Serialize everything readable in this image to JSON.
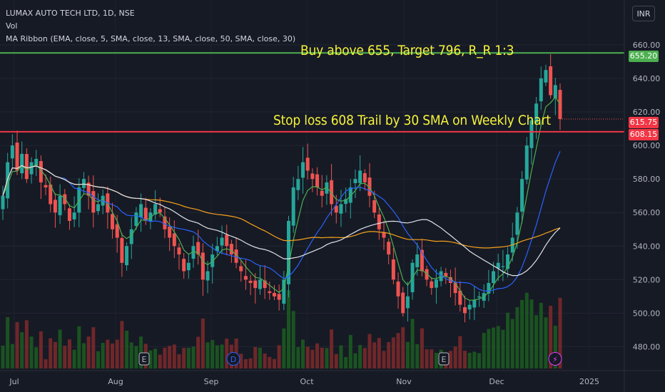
{
  "header": {
    "symbol": "LUMAX AUTO TECH LTD, 1D, NSE",
    "vol_label": "Vol",
    "ma_label": "MA Ribbon (EMA, close, 5, SMA, close, 13, SMA, close, 50, SMA, close, 30)",
    "currency_button": "INR"
  },
  "annotations": {
    "buy": "Buy above 655, Target 796, R_R 1:3",
    "stop": "Stop loss 608 Trail by 30 SMA on Weekly Chart"
  },
  "price_tags": {
    "green": "655.20",
    "current": "615.75",
    "red": "608.15"
  },
  "colors": {
    "background": "#161a25",
    "up": "#26a69a",
    "down": "#ef5350",
    "green_line": "#4caf50",
    "red_line": "#f23645",
    "ema5": "#4caf50",
    "sma13": "#2962ff",
    "sma50": "#f7a21b",
    "sma30": "#e0e3eb"
  },
  "chart_data": {
    "type": "candlestick",
    "title": "LUMAX AUTO TECH LTD, 1D, NSE",
    "x_ticks": [
      "Jul",
      "Aug",
      "Sep",
      "Oct",
      "Nov",
      "Dec",
      "2025"
    ],
    "y_ticks": [
      480,
      500,
      520,
      540,
      560,
      580,
      600,
      620,
      640,
      660
    ],
    "ylim": [
      467,
      674
    ],
    "horizontal_lines": [
      {
        "price": 655.2,
        "color": "green"
      },
      {
        "price": 608.15,
        "color": "red"
      }
    ],
    "current_price": 615.75,
    "ohlc_close": [
      570,
      590,
      600,
      585,
      595,
      580,
      590,
      592,
      578,
      575,
      565,
      560,
      570,
      565,
      555,
      560,
      575,
      580,
      570,
      560,
      565,
      570,
      560,
      550,
      545,
      530,
      540,
      550,
      560,
      565,
      555,
      560,
      565,
      560,
      550,
      545,
      540,
      535,
      525,
      530,
      540,
      535,
      520,
      525,
      535,
      540,
      545,
      540,
      535,
      530,
      525,
      520,
      518,
      515,
      520,
      515,
      512,
      510,
      508,
      520,
      555,
      575,
      580,
      590,
      585,
      580,
      575,
      570,
      578,
      565,
      560,
      565,
      568,
      575,
      580,
      585,
      578,
      570,
      560,
      550,
      545,
      535,
      520,
      510,
      500,
      510,
      530,
      535,
      525,
      520,
      515,
      520,
      525,
      522,
      518,
      512,
      505,
      500,
      505,
      508,
      510,
      512,
      518,
      525,
      530,
      528,
      535,
      545,
      560,
      580,
      600,
      615,
      625,
      640,
      645,
      630,
      636,
      615.75
    ],
    "ma_ribbon": [
      {
        "name": "EMA 5",
        "color": "green"
      },
      {
        "name": "SMA 13",
        "color": "blue"
      },
      {
        "name": "SMA 50",
        "color": "orange"
      },
      {
        "name": "SMA 30",
        "color": "white"
      }
    ],
    "volume_markers": [
      "E",
      "D",
      "E",
      "lightning"
    ]
  }
}
